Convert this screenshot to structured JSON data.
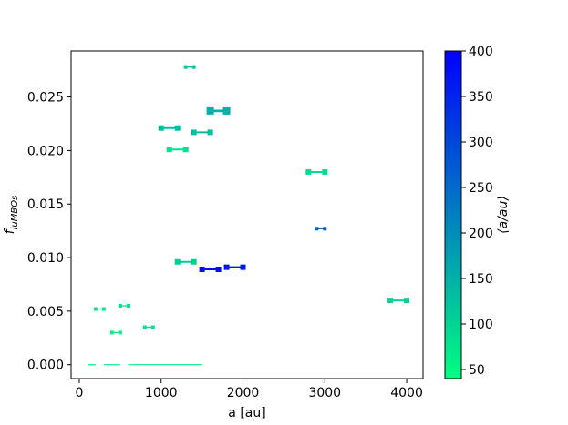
{
  "chart_data": {
    "type": "scatter",
    "xlabel": "a [au]",
    "ylabel_main": "f",
    "ylabel_sub": "luMBOs",
    "xlim": [
      -100,
      4200
    ],
    "ylim": [
      -0.0013,
      0.0293
    ],
    "xticks": [
      0,
      1000,
      2000,
      3000,
      4000
    ],
    "xtick_labels": [
      "0",
      "1000",
      "2000",
      "3000",
      "4000"
    ],
    "yticks": [
      0.0,
      0.005,
      0.01,
      0.015,
      0.02,
      0.025
    ],
    "ytick_labels": [
      "0.000",
      "0.005",
      "0.010",
      "0.015",
      "0.020",
      "0.025"
    ],
    "colorbar": {
      "label": "⟨a/au⟩",
      "range": [
        40,
        400
      ],
      "ticks": [
        50,
        100,
        150,
        200,
        250,
        300,
        350,
        400
      ],
      "tick_labels": [
        "50",
        "100",
        "150",
        "200",
        "250",
        "300",
        "350",
        "400"
      ],
      "cmap": "winter_r",
      "color_low": "#00ff80",
      "color_high": "#0000ff"
    },
    "segments": [
      {
        "x0": 100,
        "x1": 200,
        "y": 0.0,
        "c": 60
      },
      {
        "x0": 300,
        "x1": 500,
        "y": 0.0,
        "c": 60
      },
      {
        "x0": 600,
        "x1": 1500,
        "y": 0.0,
        "c": 60
      },
      {
        "x0": 200,
        "x1": 300,
        "y": 0.0052,
        "c": 70
      },
      {
        "x0": 400,
        "x1": 500,
        "y": 0.003,
        "c": 60
      },
      {
        "x0": 500,
        "x1": 600,
        "y": 0.0055,
        "c": 80
      },
      {
        "x0": 800,
        "x1": 900,
        "y": 0.0035,
        "c": 80
      },
      {
        "x0": 1000,
        "x1": 1200,
        "y": 0.0221,
        "c": 130
      },
      {
        "x0": 1100,
        "x1": 1300,
        "y": 0.0201,
        "c": 80
      },
      {
        "x0": 1200,
        "x1": 1400,
        "y": 0.0096,
        "c": 110
      },
      {
        "x0": 1300,
        "x1": 1400,
        "y": 0.0278,
        "c": 120
      },
      {
        "x0": 1400,
        "x1": 1600,
        "y": 0.0217,
        "c": 130
      },
      {
        "x0": 1500,
        "x1": 1700,
        "y": 0.0089,
        "c": 380
      },
      {
        "x0": 1600,
        "x1": 1800,
        "y": 0.0237,
        "c": 150
      },
      {
        "x0": 1800,
        "x1": 2000,
        "y": 0.0091,
        "c": 370
      },
      {
        "x0": 2800,
        "x1": 3000,
        "y": 0.018,
        "c": 90
      },
      {
        "x0": 2900,
        "x1": 3000,
        "y": 0.0127,
        "c": 250
      },
      {
        "x0": 3800,
        "x1": 4000,
        "y": 0.006,
        "c": 100
      }
    ]
  }
}
